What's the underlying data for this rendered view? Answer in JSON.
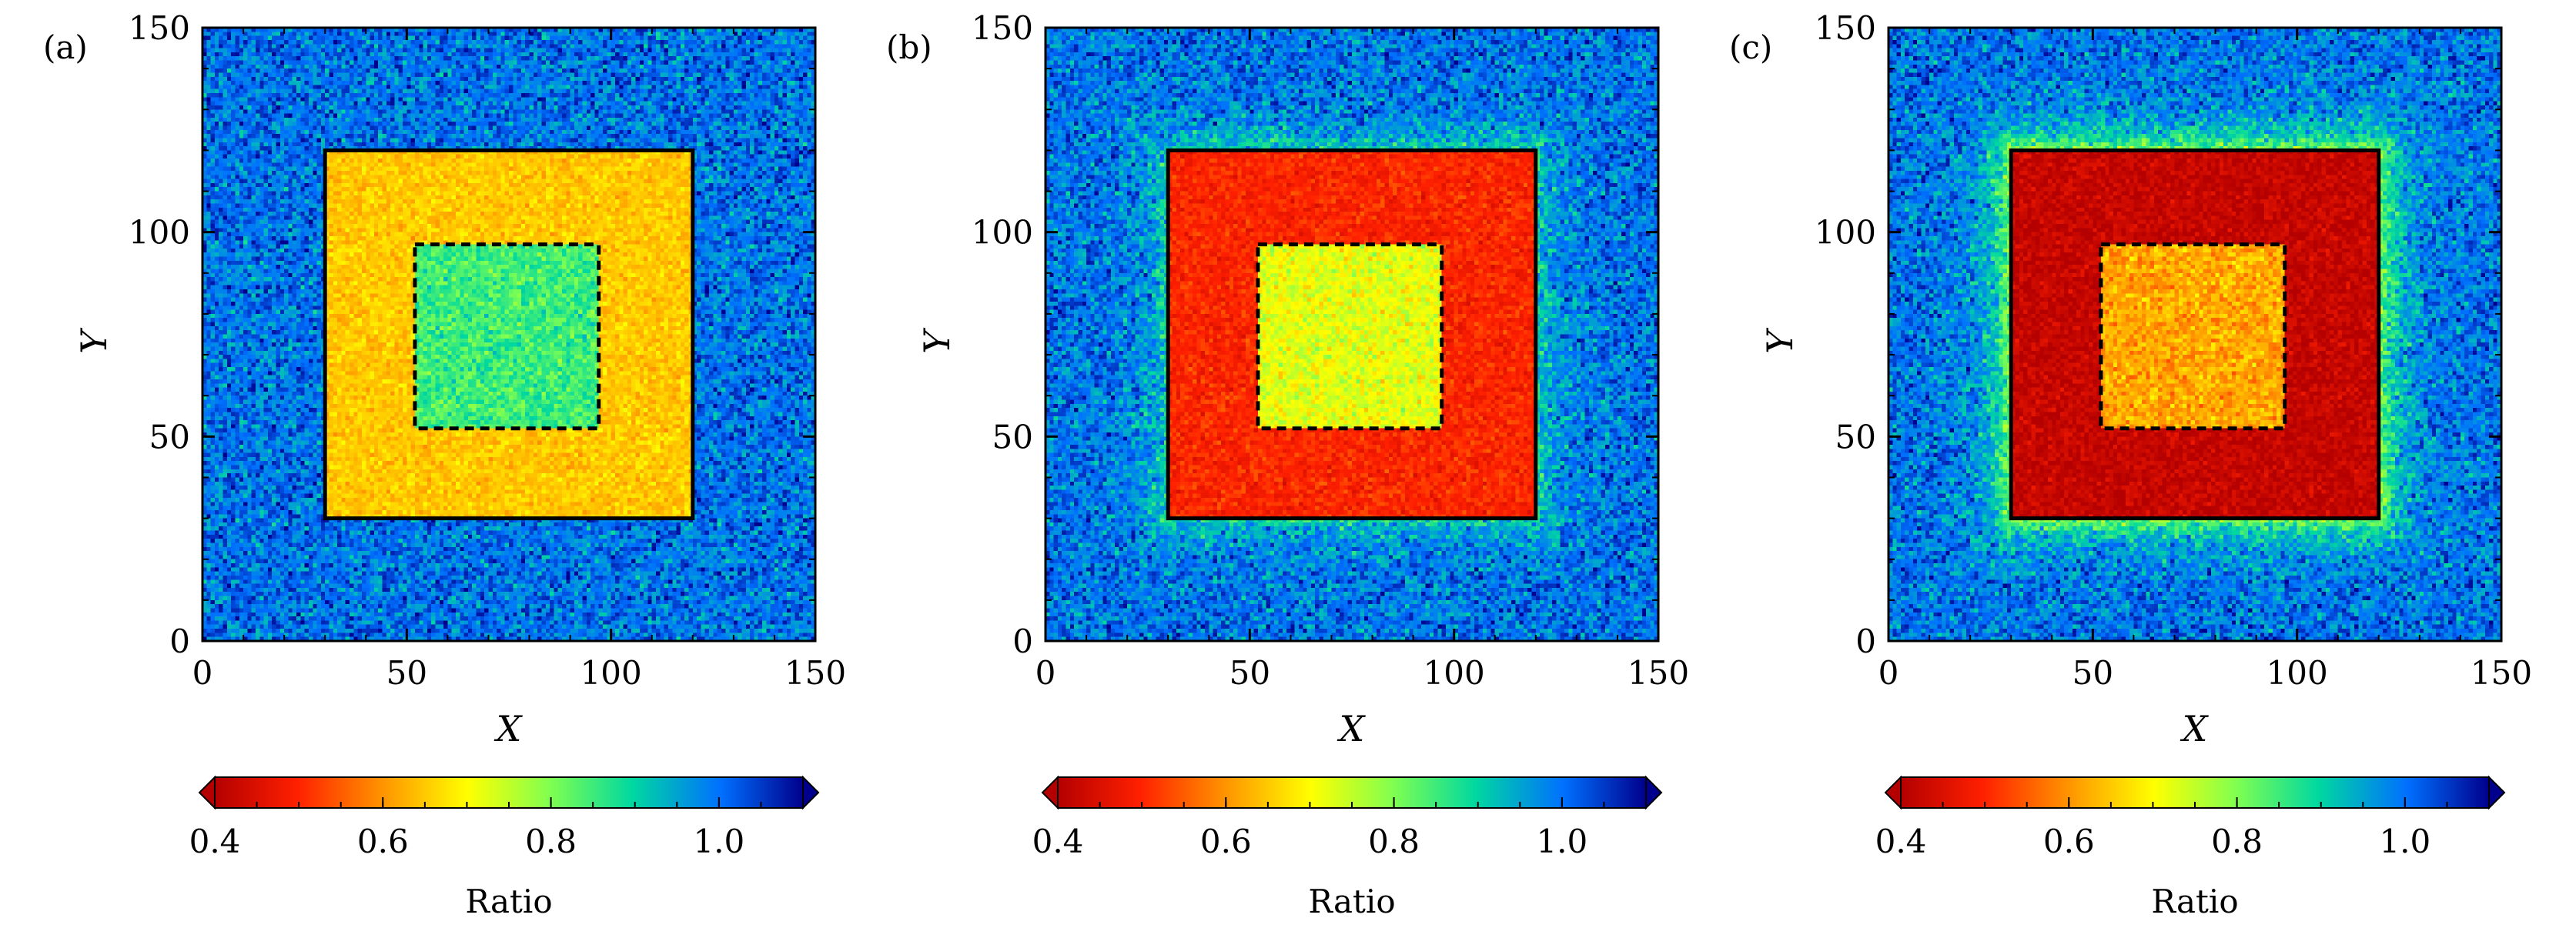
{
  "chart_data": [
    {
      "type": "heatmap",
      "panel_label": "(a)",
      "xlabel": "X",
      "ylabel": "Y",
      "xlim": [
        0,
        150
      ],
      "ylim": [
        0,
        150
      ],
      "xticks": [
        "0",
        "50",
        "100",
        "150"
      ],
      "yticks": [
        "0",
        "50",
        "100",
        "150"
      ],
      "grid": false,
      "regions": {
        "background": {
          "x": [
            0,
            150
          ],
          "y": [
            0,
            150
          ],
          "value": 1.0
        },
        "outer_square": {
          "x": [
            30,
            120
          ],
          "y": [
            30,
            120
          ],
          "value": 0.65,
          "border": "solid"
        },
        "inner_square": {
          "x": [
            52,
            97
          ],
          "y": [
            52,
            97
          ],
          "value": 0.85,
          "border": "dashed"
        }
      },
      "halo_value": null,
      "colorbar": {
        "label": "Ratio",
        "range": [
          0.4,
          1.1
        ],
        "ticks": [
          "0.4",
          "0.6",
          "0.8",
          "1.0"
        ],
        "extend": "both"
      }
    },
    {
      "type": "heatmap",
      "panel_label": "(b)",
      "xlabel": "X",
      "ylabel": "Y",
      "xlim": [
        0,
        150
      ],
      "ylim": [
        0,
        150
      ],
      "xticks": [
        "0",
        "50",
        "100",
        "150"
      ],
      "yticks": [
        "0",
        "50",
        "100",
        "150"
      ],
      "grid": false,
      "regions": {
        "background": {
          "x": [
            0,
            150
          ],
          "y": [
            0,
            150
          ],
          "value": 1.0
        },
        "outer_square": {
          "x": [
            30,
            120
          ],
          "y": [
            30,
            120
          ],
          "value": 0.5,
          "border": "solid"
        },
        "inner_square": {
          "x": [
            52,
            97
          ],
          "y": [
            52,
            97
          ],
          "value": 0.72,
          "border": "dashed"
        }
      },
      "halo_value": 0.9,
      "colorbar": {
        "label": "Ratio",
        "range": [
          0.4,
          1.1
        ],
        "ticks": [
          "0.4",
          "0.6",
          "0.8",
          "1.0"
        ],
        "extend": "both"
      }
    },
    {
      "type": "heatmap",
      "panel_label": "(c)",
      "xlabel": "X",
      "ylabel": "Y",
      "xlim": [
        0,
        150
      ],
      "ylim": [
        0,
        150
      ],
      "xticks": [
        "0",
        "50",
        "100",
        "150"
      ],
      "yticks": [
        "0",
        "50",
        "100",
        "150"
      ],
      "grid": false,
      "regions": {
        "background": {
          "x": [
            0,
            150
          ],
          "y": [
            0,
            150
          ],
          "value": 1.0
        },
        "outer_square": {
          "x": [
            30,
            120
          ],
          "y": [
            30,
            120
          ],
          "value": 0.42,
          "border": "solid"
        },
        "inner_square": {
          "x": [
            52,
            97
          ],
          "y": [
            52,
            97
          ],
          "value": 0.62,
          "border": "dashed"
        }
      },
      "halo_value": 0.8,
      "colorbar": {
        "label": "Ratio",
        "range": [
          0.4,
          1.1
        ],
        "ticks": [
          "0.4",
          "0.6",
          "0.8",
          "1.0"
        ],
        "extend": "both"
      }
    }
  ]
}
